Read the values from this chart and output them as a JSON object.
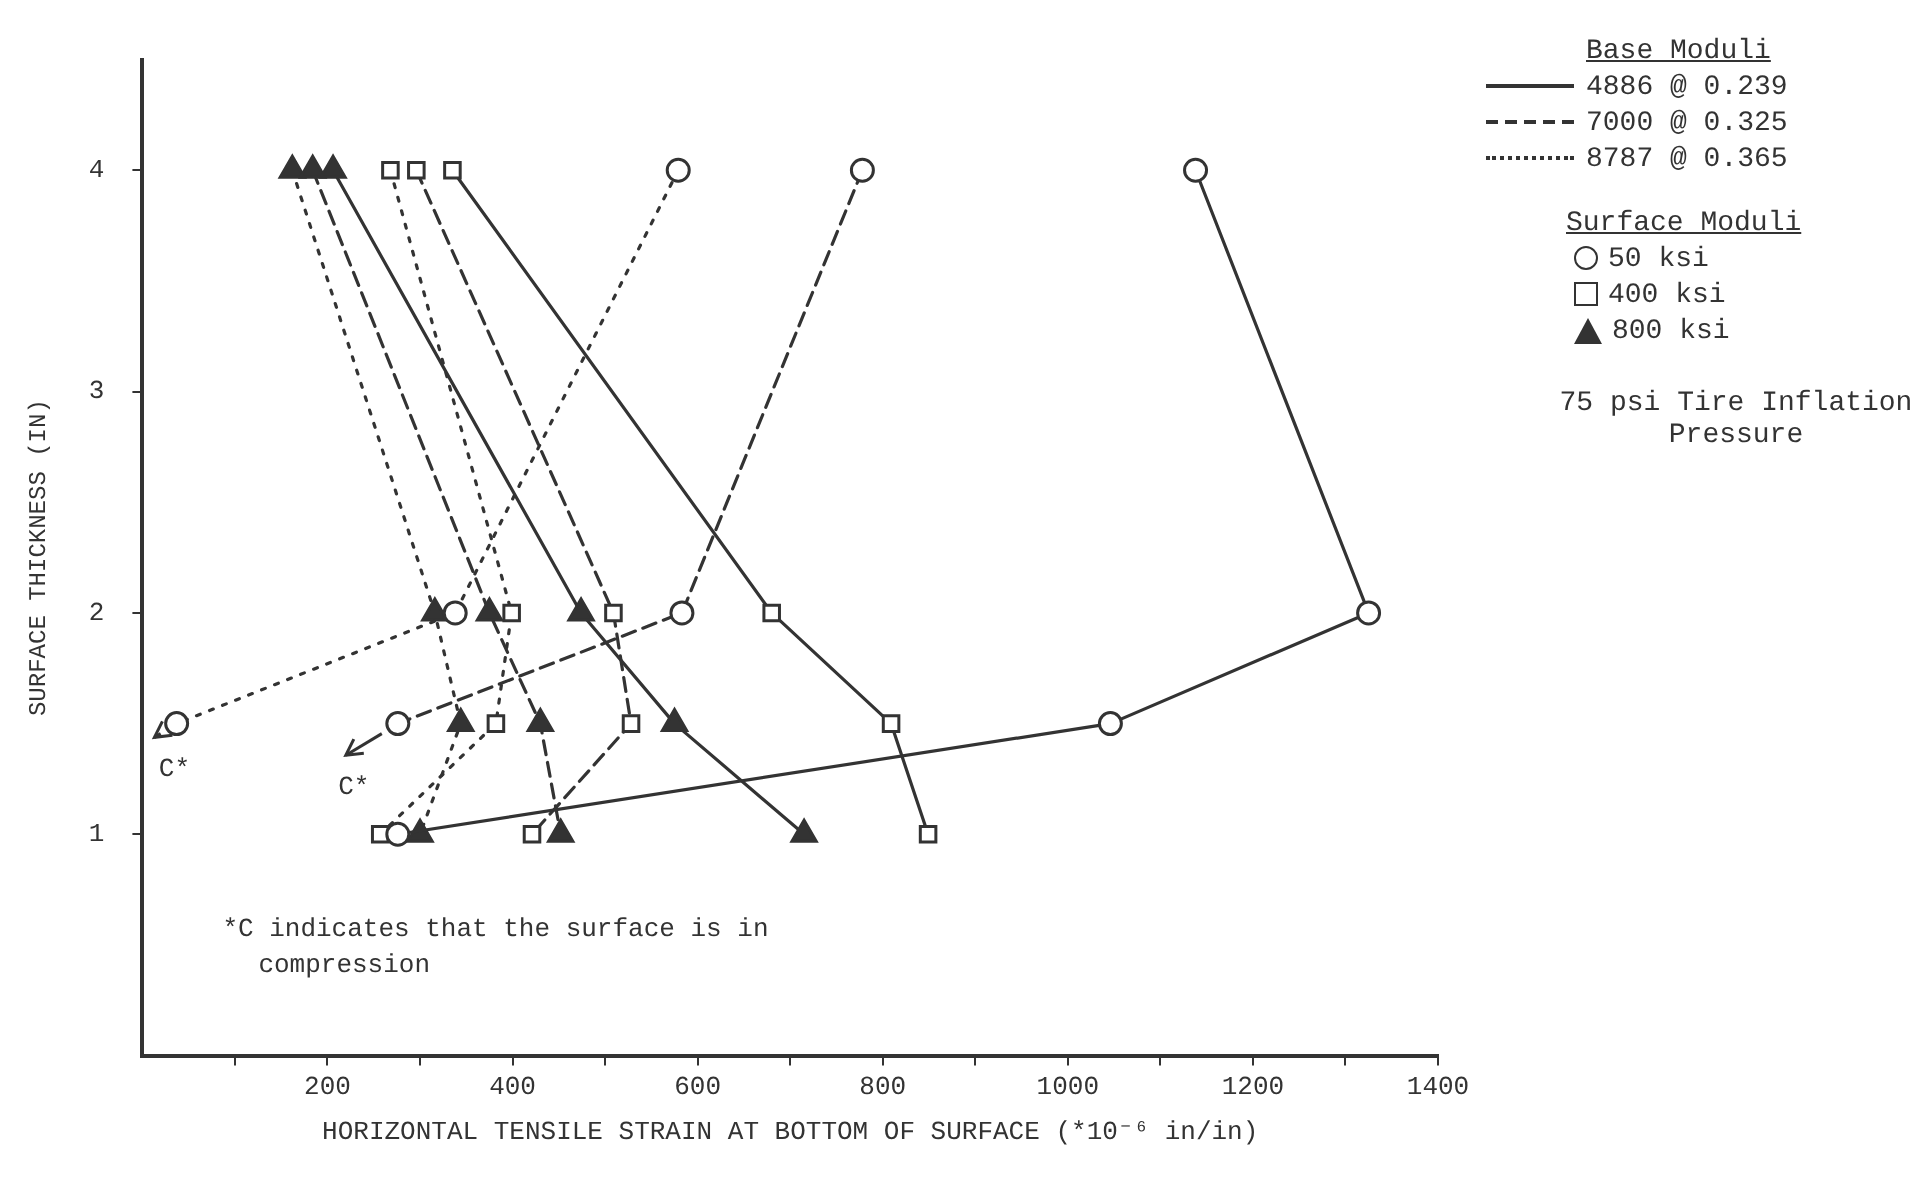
{
  "chart_data": {
    "type": "line",
    "xlabel": "HORIZONTAL TENSILE STRAIN AT BOTTOM OF SURFACE (*10⁻⁶ in/in)",
    "ylabel": "SURFACE THICKNESS (IN)",
    "xlim": [
      0,
      1400
    ],
    "xticks": [
      {
        "value": 100,
        "label": null
      },
      200,
      {
        "value": 300,
        "label": null
      },
      400,
      {
        "value": 500,
        "label": null
      },
      600,
      {
        "value": 700,
        "label": null
      },
      800,
      {
        "value": 900,
        "label": null
      },
      1000,
      {
        "value": 1100,
        "label": null
      },
      1200,
      {
        "value": 1300,
        "label": null
      },
      1400
    ],
    "ylim": [
      0,
      4.5
    ],
    "yticks": [
      1,
      2,
      3,
      4
    ],
    "grid": false,
    "series": [
      {
        "color": "#333333",
        "marker": "circle",
        "line_style": "solid",
        "x": [
          1138,
          1325,
          1046,
          276
        ],
        "values": [
          4,
          2,
          1.5,
          1
        ]
      },
      {
        "color": "#333333",
        "marker": "square",
        "line_style": "solid",
        "x": [
          335,
          680,
          809,
          849
        ],
        "values": [
          4,
          2,
          1.5,
          1
        ]
      },
      {
        "color": "#333333",
        "marker": "triangle",
        "line_style": "solid",
        "x": [
          206,
          474,
          575,
          715
        ],
        "values": [
          4,
          2,
          1.5,
          1
        ]
      },
      {
        "color": "#333333",
        "marker": "circle",
        "line_style": "dashed",
        "x": [
          778,
          583,
          276
        ],
        "values": [
          4,
          2,
          1.5
        ]
      },
      {
        "color": "#333333",
        "marker": "square",
        "line_style": "dashed",
        "x": [
          296,
          509,
          528,
          421
        ],
        "values": [
          4,
          2,
          1.5,
          1
        ]
      },
      {
        "color": "#333333",
        "marker": "triangle",
        "line_style": "dashed",
        "x": [
          184,
          375,
          430,
          452
        ],
        "values": [
          4,
          2,
          1.5,
          1
        ]
      },
      {
        "color": "#333333",
        "marker": "circle",
        "line_style": "dotted",
        "x": [
          579,
          338,
          37
        ],
        "values": [
          4,
          2,
          1.5
        ]
      },
      {
        "color": "#333333",
        "marker": "square",
        "line_style": "dotted",
        "x": [
          268,
          399,
          382,
          257
        ],
        "values": [
          4,
          2,
          1.5,
          1
        ]
      },
      {
        "color": "#333333",
        "marker": "triangle",
        "line_style": "dotted",
        "x": [
          162,
          316,
          344,
          300
        ],
        "values": [
          4,
          2,
          1.5,
          1
        ]
      }
    ],
    "annotations": [
      "Base Moduli",
      "4886 @ 0.239",
      "7000 @ 0.325",
      "8787 @ 0.365",
      "Surface Moduli",
      "50 ksi",
      "400 ksi",
      "800 ksi",
      "75 psi Tire Inflation Pressure",
      "*C indicates that the surface is in compression",
      {
        "text": "C*",
        "x": 37,
        "y": 1.5
      },
      {
        "text": "C*",
        "x": 276,
        "y": 1.5
      }
    ]
  }
}
